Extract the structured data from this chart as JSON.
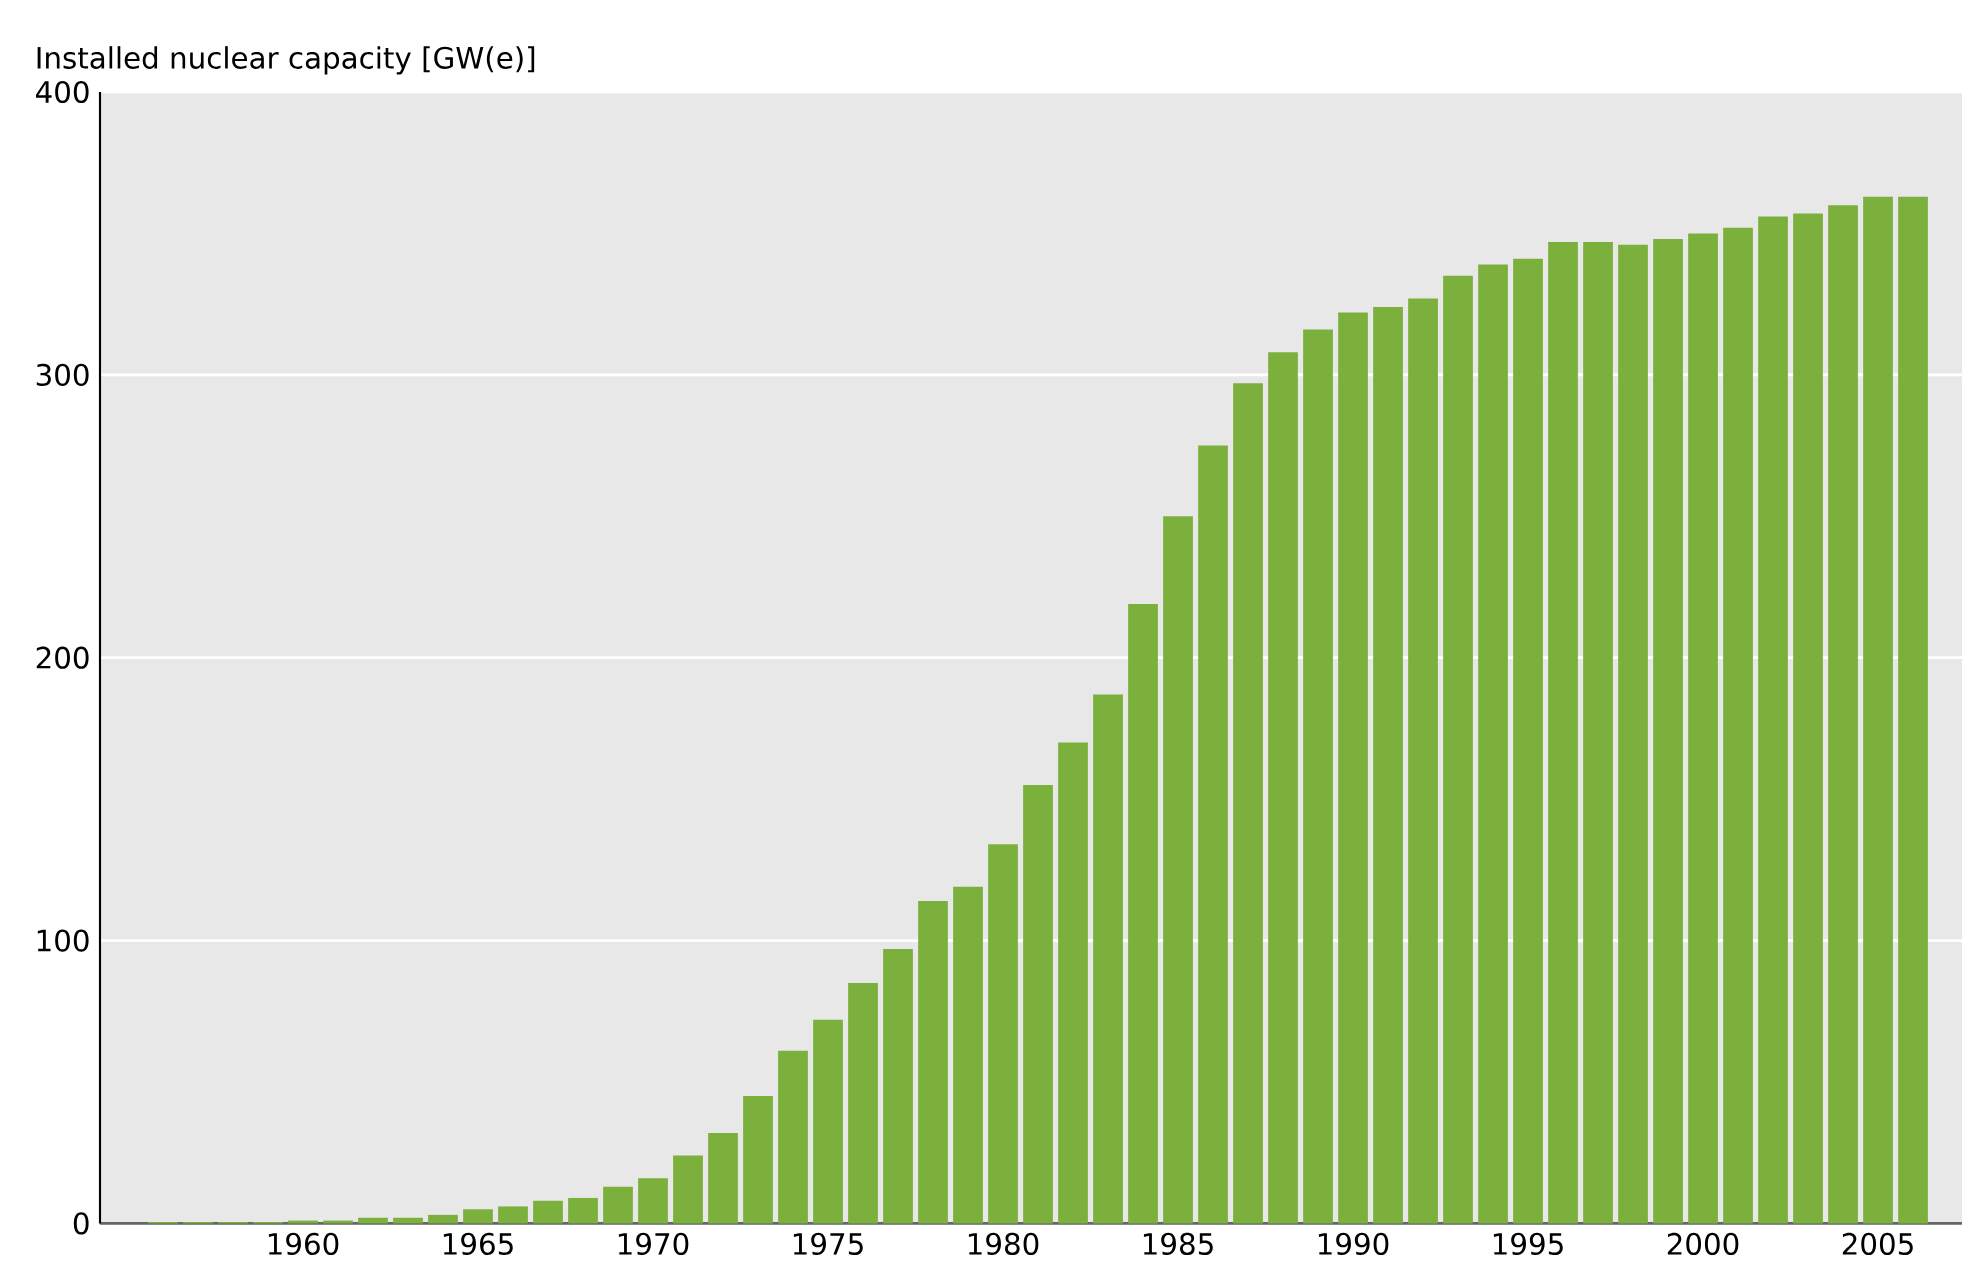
{
  "chart_data": {
    "type": "bar",
    "ylabel": "Installed nuclear capacity [GW(e)]",
    "x": [
      1956,
      1957,
      1958,
      1959,
      1960,
      1961,
      1962,
      1963,
      1964,
      1965,
      1966,
      1967,
      1968,
      1969,
      1970,
      1971,
      1972,
      1973,
      1974,
      1975,
      1976,
      1977,
      1978,
      1979,
      1980,
      1981,
      1982,
      1983,
      1984,
      1985,
      1986,
      1987,
      1988,
      1989,
      1990,
      1991,
      1992,
      1993,
      1994,
      1995,
      1996,
      1997,
      1998,
      1999,
      2000,
      2001,
      2002,
      2003,
      2004,
      2005,
      2006
    ],
    "values": [
      0.5,
      0.5,
      0.5,
      0.5,
      1,
      1,
      2,
      2,
      3,
      5,
      6,
      8,
      9,
      13,
      16,
      24,
      32,
      45,
      61,
      72,
      85,
      97,
      114,
      119,
      134,
      155,
      170,
      187,
      219,
      250,
      275,
      297,
      308,
      316,
      322,
      324,
      327,
      335,
      339,
      341,
      347,
      347,
      346,
      348,
      350,
      352,
      356,
      357,
      360,
      363,
      363
    ],
    "color": "#7cb03c",
    "xlim": [
      1954.2,
      2007.4
    ],
    "xticks": [
      1960,
      1965,
      1970,
      1975,
      1980,
      1985,
      1990,
      1995,
      2000,
      2005
    ],
    "ylim": [
      0,
      400
    ],
    "yticks": [
      0,
      100,
      200,
      300,
      400
    ],
    "grid": "y"
  }
}
